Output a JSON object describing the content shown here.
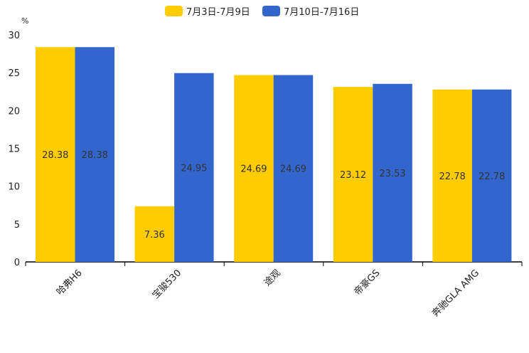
{
  "chart_data": {
    "type": "bar",
    "title": "",
    "ylabel": "%",
    "xlabel": "",
    "ylim": [
      0,
      30
    ],
    "yticks": [
      0,
      5,
      10,
      15,
      20,
      25,
      30
    ],
    "categories": [
      "哈弗H6",
      "宝骏530",
      "途观",
      "帝豪GS",
      "奔驰GLA AMG"
    ],
    "series": [
      {
        "name": "7月3日-7月9日",
        "color": "#FFCC00",
        "values": [
          28.38,
          7.36,
          24.69,
          23.12,
          22.78
        ]
      },
      {
        "name": "7月10日-7月16日",
        "color": "#3366CC",
        "values": [
          28.38,
          24.95,
          24.69,
          23.53,
          22.78
        ]
      }
    ],
    "legend_position": "top-center",
    "grid": false
  }
}
